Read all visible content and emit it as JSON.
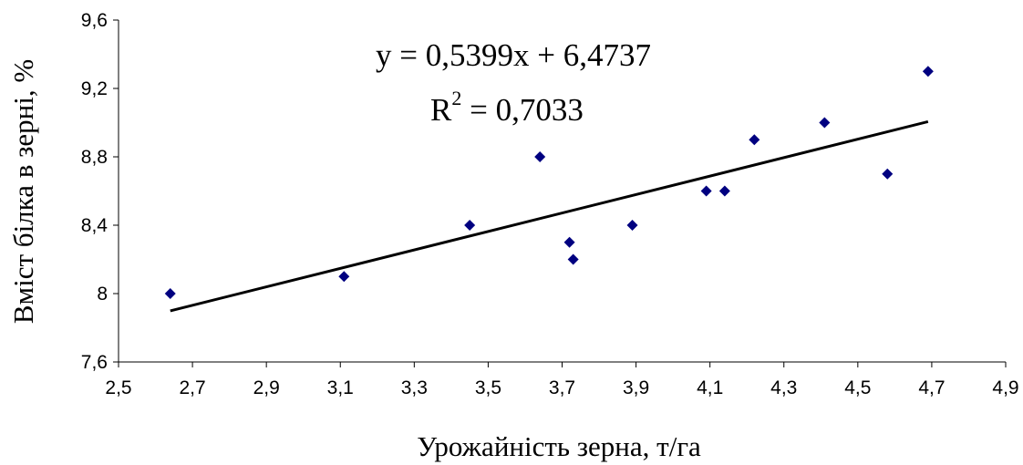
{
  "chart_data": {
    "type": "scatter",
    "title": "",
    "xlabel": "Урожайність зерна, т/га",
    "ylabel": "Вміст білка в зерні, %",
    "xlim": [
      2.5,
      4.9
    ],
    "ylim": [
      7.6,
      9.6
    ],
    "xticks": [
      "2,5",
      "2,7",
      "2,9",
      "3,1",
      "3,3",
      "3,5",
      "3,7",
      "3,9",
      "4,1",
      "4,3",
      "4,5",
      "4,7",
      "4,9"
    ],
    "xtick_values": [
      2.5,
      2.7,
      2.9,
      3.1,
      3.3,
      3.5,
      3.7,
      3.9,
      4.1,
      4.3,
      4.5,
      4.7,
      4.9
    ],
    "yticks": [
      "7,6",
      "8",
      "8,4",
      "8,8",
      "9,2",
      "9,6"
    ],
    "ytick_values": [
      7.6,
      8.0,
      8.4,
      8.8,
      9.2,
      9.6
    ],
    "grid": false,
    "marker_color": "#000080",
    "points": [
      {
        "x": 2.64,
        "y": 8.0
      },
      {
        "x": 3.11,
        "y": 8.1
      },
      {
        "x": 3.45,
        "y": 8.4
      },
      {
        "x": 3.64,
        "y": 8.8
      },
      {
        "x": 3.72,
        "y": 8.3
      },
      {
        "x": 3.73,
        "y": 8.2
      },
      {
        "x": 3.89,
        "y": 8.4
      },
      {
        "x": 4.09,
        "y": 8.6
      },
      {
        "x": 4.14,
        "y": 8.6
      },
      {
        "x": 4.22,
        "y": 8.9
      },
      {
        "x": 4.41,
        "y": 9.0
      },
      {
        "x": 4.58,
        "y": 8.7
      },
      {
        "x": 4.69,
        "y": 9.3
      }
    ],
    "trendline": {
      "type": "linear",
      "slope": 0.5399,
      "intercept": 6.4737,
      "x_range": [
        2.64,
        4.69
      ],
      "color": "#000000",
      "equation_label": "y = 0,5399x + 6,4737",
      "r2_base": "R",
      "r2_exp": "2",
      "r2_value": " = 0,7033"
    }
  }
}
